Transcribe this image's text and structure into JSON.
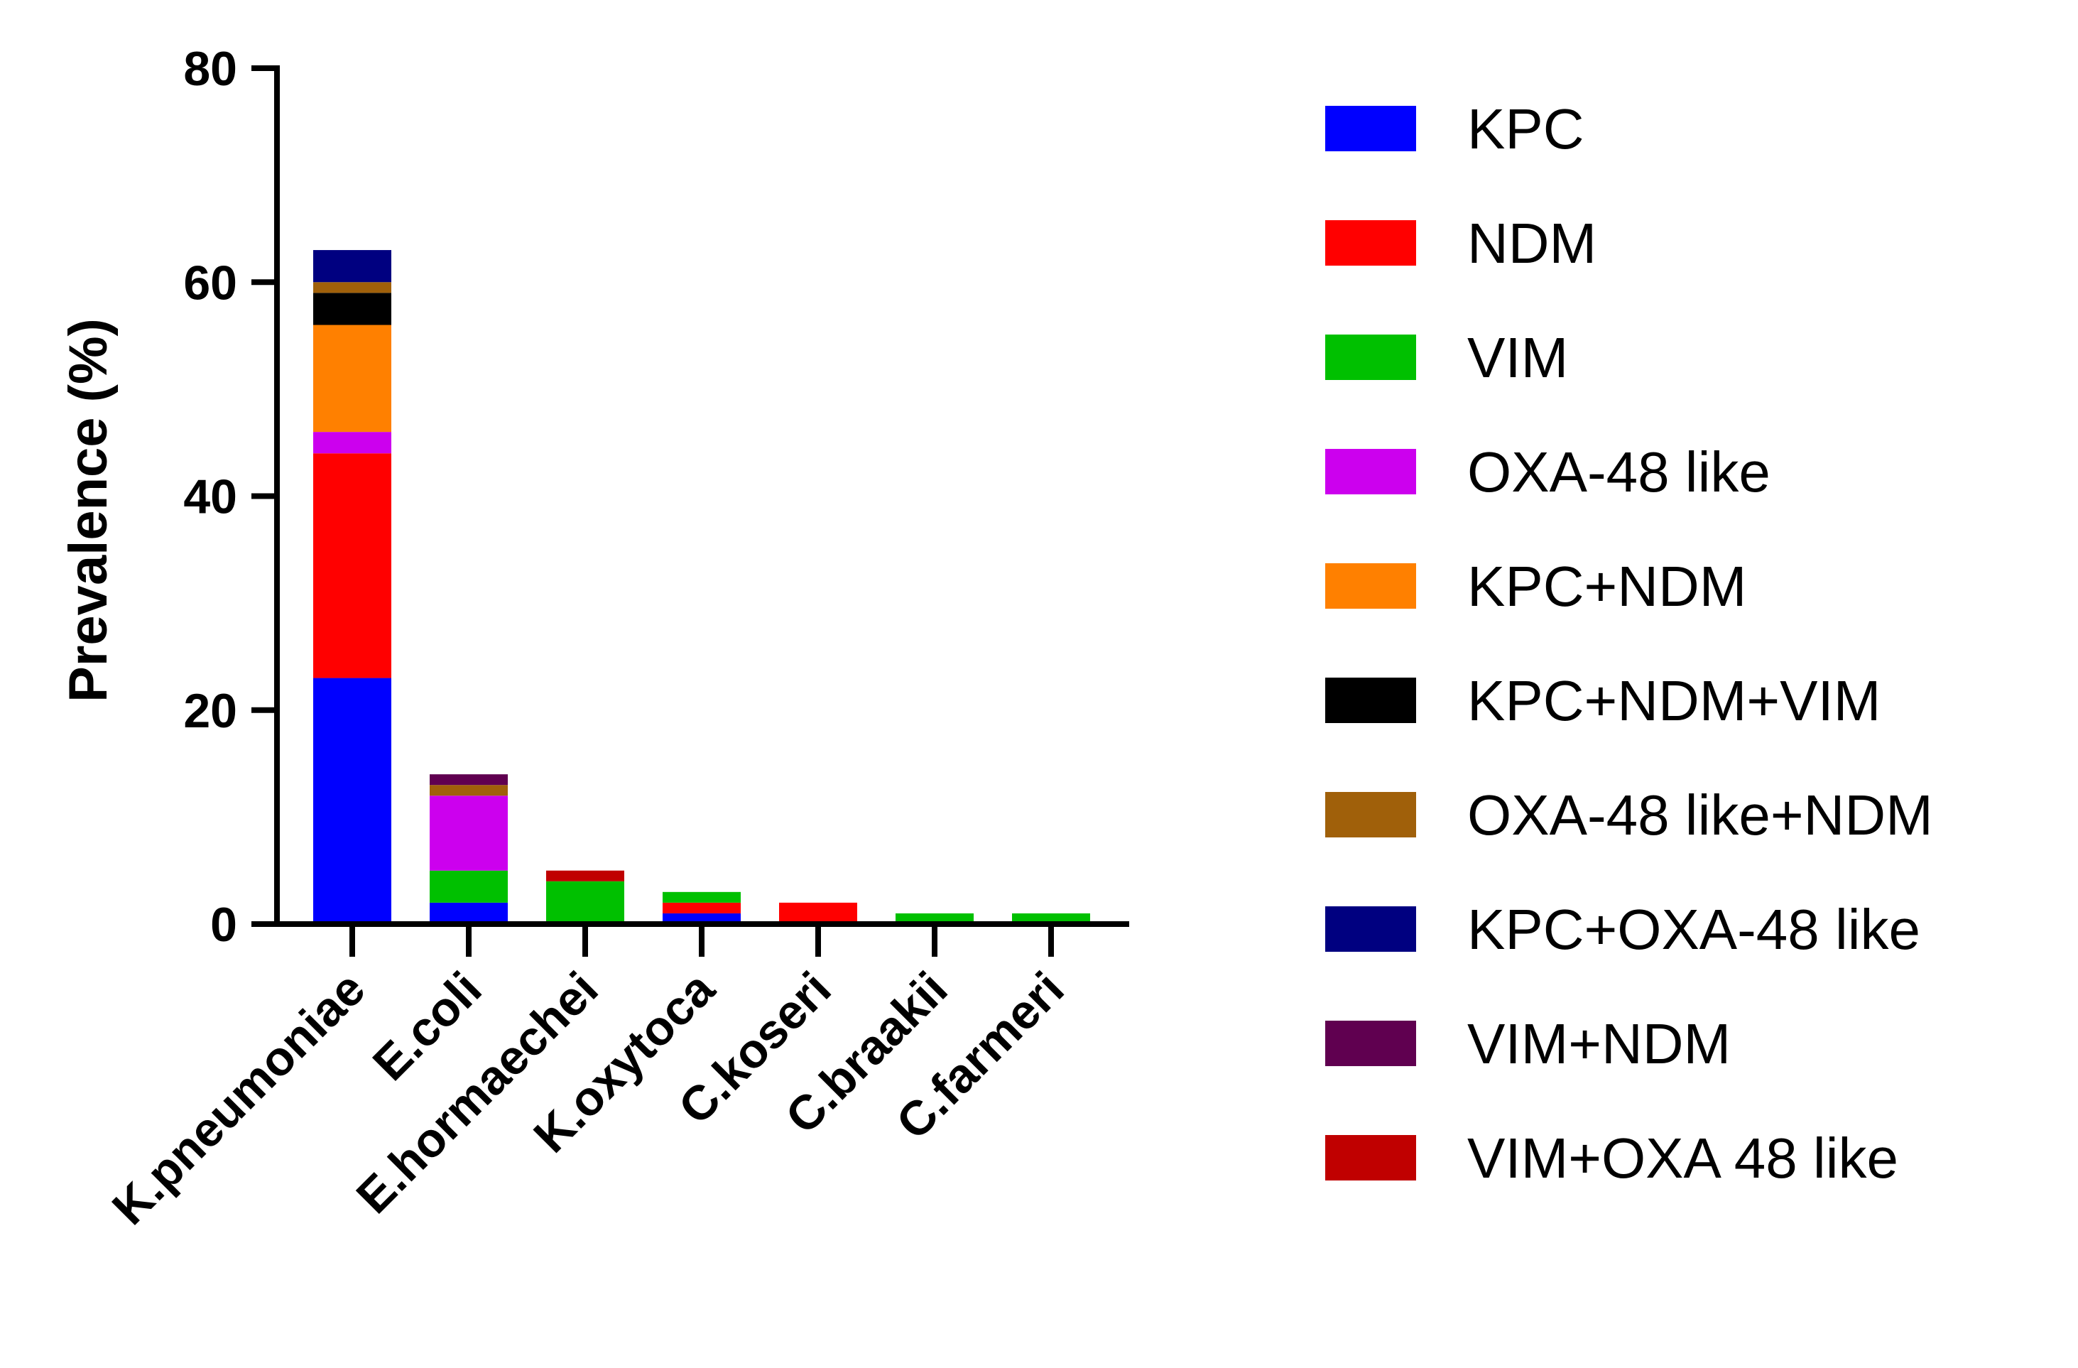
{
  "chart_data": {
    "type": "bar",
    "stacked": true,
    "title": "",
    "xlabel": "",
    "ylabel": "Prevalence (%)",
    "ylim": [
      0,
      80
    ],
    "yticks": [
      0,
      20,
      40,
      60,
      80
    ],
    "grid": false,
    "legend_position": "right",
    "categories": [
      "K.pneumoniae",
      "E.coli",
      "E.hormaechei",
      "K.oxytoca",
      "C.koseri",
      "C.braakii",
      "C.farmeri"
    ],
    "series": [
      {
        "name": "KPC",
        "color": "#0000ff",
        "values": [
          23,
          2,
          0,
          1,
          0,
          0,
          0
        ]
      },
      {
        "name": "NDM",
        "color": "#ff0000",
        "values": [
          21,
          0,
          0,
          1,
          2,
          0,
          0
        ]
      },
      {
        "name": "VIM",
        "color": "#00c000",
        "values": [
          0,
          3,
          4,
          1,
          0,
          1,
          1
        ]
      },
      {
        "name": "OXA-48 like",
        "color": "#cc00ee",
        "values": [
          2,
          7,
          0,
          0,
          0,
          0,
          0
        ]
      },
      {
        "name": "KPC+NDM",
        "color": "#ff8000",
        "values": [
          10,
          0,
          0,
          0,
          0,
          0,
          0
        ]
      },
      {
        "name": "KPC+NDM+VIM",
        "color": "#000000",
        "values": [
          3,
          0,
          0,
          0,
          0,
          0,
          0
        ]
      },
      {
        "name": "OXA-48 like+NDM",
        "color": "#a0600a",
        "values": [
          1,
          1,
          0,
          0,
          0,
          0,
          0
        ]
      },
      {
        "name": "KPC+OXA-48 like",
        "color": "#000080",
        "values": [
          3,
          0,
          0,
          0,
          0,
          0,
          0
        ]
      },
      {
        "name": "VIM+NDM",
        "color": "#600050",
        "values": [
          0,
          1,
          0,
          0,
          0,
          0,
          0
        ]
      },
      {
        "name": "VIM+OXA 48 like",
        "color": "#c00000",
        "values": [
          0,
          0,
          1,
          0,
          0,
          0,
          0
        ]
      }
    ]
  }
}
